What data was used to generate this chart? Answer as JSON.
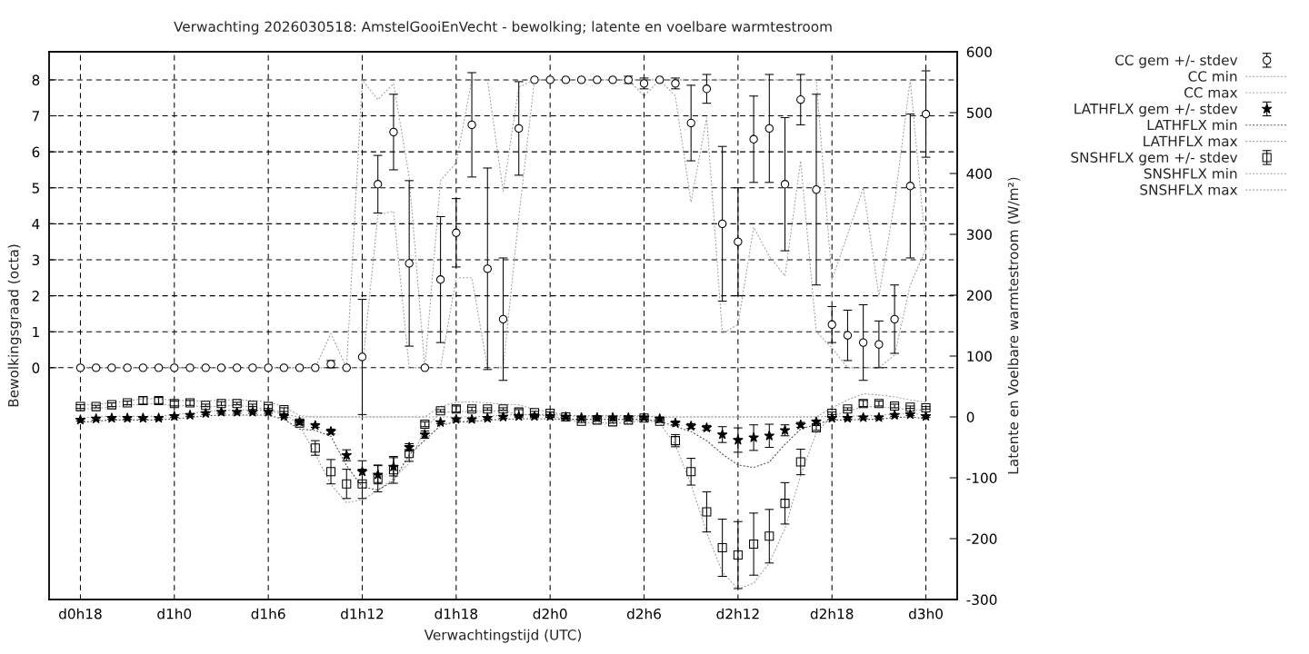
{
  "chart_data": {
    "type": "scatter",
    "title": "Verwachting 2026030518: AmstelGooiEnVecht - bewolking; latente en voelbare warmtestroom",
    "xlabel": "Verwachtingstijd (UTC)",
    "ylabel": "Bewolkingsgraad (octa)",
    "y2label": "Latente en Voelbare warmtestroom (W/m²)",
    "categories": [
      "d0h18",
      null,
      null,
      null,
      null,
      null,
      "d1h0",
      null,
      null,
      null,
      null,
      null,
      "d1h6",
      null,
      null,
      null,
      null,
      null,
      "d1h12",
      null,
      null,
      null,
      null,
      null,
      "d1h18",
      null,
      null,
      null,
      null,
      null,
      "d2h0",
      null,
      null,
      null,
      null,
      null,
      "d2h6",
      null,
      null,
      null,
      null,
      null,
      "d2h12",
      null,
      null,
      null,
      null,
      null,
      "d2h18",
      null,
      null,
      null,
      null,
      null,
      "d3h0"
    ],
    "ylim": [
      -6.44,
      8.78
    ],
    "yticks": [
      0,
      1,
      2,
      3,
      4,
      5,
      6,
      7,
      8
    ],
    "y2lim": [
      -300,
      600
    ],
    "y2ticks": [
      -300,
      -200,
      -100,
      0,
      100,
      200,
      300,
      400,
      500,
      600
    ],
    "grid": true,
    "legend": "top right",
    "series": [
      {
        "name": "CC gem +/- stdev",
        "marker": "circle",
        "color": "#000000",
        "values": [
          0,
          0,
          0,
          0,
          0,
          0,
          0,
          0,
          0,
          0,
          0,
          0,
          0,
          0,
          0,
          0,
          0.1,
          0,
          0.3,
          5.1,
          6.55,
          2.9,
          0,
          2.45,
          3.75,
          6.75,
          2.75,
          1.35,
          6.65,
          8,
          8,
          8,
          8,
          8,
          8,
          8,
          7.9,
          8,
          7.9,
          6.8,
          7.75,
          4.0,
          3.5,
          6.35,
          6.65,
          5.1,
          7.45,
          4.95,
          1.2,
          0.9,
          0.7,
          0.65,
          1.35,
          5.05,
          7.05
        ],
        "errors": [
          null,
          null,
          null,
          null,
          null,
          null,
          null,
          null,
          null,
          null,
          null,
          null,
          null,
          null,
          null,
          null,
          0.1,
          null,
          1.6,
          0.8,
          1.05,
          2.3,
          null,
          1.75,
          0.95,
          1.45,
          2.8,
          1.7,
          1.3,
          null,
          null,
          null,
          null,
          null,
          null,
          0.1,
          0.15,
          null,
          0.15,
          1.05,
          0.4,
          2.15,
          1.5,
          1.2,
          1.5,
          1.85,
          0.7,
          2.65,
          0.5,
          0.7,
          1.05,
          0.65,
          0.95,
          2.0,
          1.2
        ]
      },
      {
        "name": "CC min",
        "type": "line",
        "line_style": "dotted",
        "color": "#a0a0a0",
        "values": [
          0,
          0,
          0,
          0,
          0,
          0,
          0,
          0,
          0,
          0,
          0,
          0,
          0,
          0,
          0,
          0,
          0,
          0,
          0,
          4.25,
          4.35,
          0,
          0,
          0,
          2.5,
          2.5,
          0,
          0,
          4.2,
          8,
          8,
          8,
          8,
          8,
          8,
          8,
          7.55,
          8,
          7.55,
          4.6,
          6.95,
          0.95,
          1.2,
          3.9,
          3.1,
          2.55,
          5.75,
          1.0,
          0.55,
          0,
          0,
          0,
          0.35,
          2.3,
          3.3
        ]
      },
      {
        "name": "CC max",
        "type": "line",
        "line_style": "dotted",
        "color": "#a0a0a0",
        "values": [
          0,
          0,
          0,
          0,
          0,
          0,
          0,
          0,
          0,
          0,
          0,
          0,
          0,
          0,
          0,
          0,
          0.95,
          0,
          8,
          7.45,
          7.9,
          5.3,
          0,
          5.2,
          5.7,
          8,
          8,
          4.9,
          7.8,
          8,
          8,
          8,
          8,
          8,
          8,
          8,
          8,
          8,
          8,
          8,
          8,
          8,
          8,
          8,
          8,
          8,
          8,
          8,
          2.45,
          3.7,
          5.0,
          2.0,
          4.6,
          8,
          3.3
        ]
      },
      {
        "name": "LATHFLX gem +/- stdev",
        "axis": "y2",
        "marker": "star",
        "color": "#000000",
        "values": [
          -5,
          -3,
          -2,
          -2,
          -2,
          -2,
          1,
          3,
          6,
          8,
          8,
          8,
          8,
          1,
          -8,
          -14,
          -24,
          -63,
          -90,
          -95,
          -82,
          -50,
          -29,
          -9,
          -4,
          -4,
          -2,
          0,
          1,
          1,
          1,
          0,
          -1,
          -1,
          -1,
          -1,
          -1,
          -3,
          -10,
          -15,
          -18,
          -29,
          -38,
          -34,
          -31,
          -22,
          -13,
          -8,
          -2,
          -2,
          -1,
          -1,
          3,
          4,
          1
        ],
        "errors": [
          2,
          2,
          2,
          2,
          2,
          2,
          2,
          2,
          2,
          2,
          2,
          2,
          2,
          2,
          2,
          3,
          4,
          9,
          18,
          15,
          15,
          6,
          6,
          2,
          2,
          2,
          2,
          2,
          2,
          2,
          2,
          2,
          2,
          2,
          2,
          2,
          2,
          2,
          3,
          4,
          4,
          13,
          20,
          21,
          19,
          9,
          4,
          3,
          2,
          2,
          2,
          2,
          2,
          2,
          2
        ]
      },
      {
        "name": "LATHFLX min",
        "type": "line",
        "axis": "y2",
        "line_style": "dotted",
        "color": "#505050",
        "values": [
          -9,
          -7,
          -5,
          -5,
          -5,
          -5,
          -3,
          -1,
          2,
          3,
          3,
          3,
          3,
          -4,
          -20,
          -22,
          -32,
          -80,
          -115,
          -120,
          -105,
          -62,
          -38,
          -14,
          -8,
          -8,
          -5,
          -4,
          -3,
          -3,
          -3,
          -4,
          -4,
          -4,
          -4,
          -4,
          -4,
          -7,
          -16,
          -24,
          -39,
          -61,
          -79,
          -83,
          -74,
          -45,
          -20,
          -12,
          -5,
          -5,
          -4,
          -4,
          -1,
          0,
          -3
        ]
      },
      {
        "name": "LATHFLX max",
        "type": "line",
        "axis": "y2",
        "line_style": "dotted",
        "color": "#a0a0a0",
        "values": [
          -2,
          0,
          1,
          1,
          1,
          1,
          4,
          6,
          9,
          11,
          11,
          11,
          11,
          4,
          0,
          0,
          0,
          0,
          0,
          0,
          0,
          0,
          0,
          0,
          0,
          0,
          1,
          3,
          4,
          4,
          4,
          2,
          2,
          2,
          2,
          2,
          2,
          0,
          0,
          0,
          0,
          0,
          0,
          0,
          0,
          0,
          0,
          0,
          1,
          1,
          2,
          2,
          5,
          6,
          3
        ]
      },
      {
        "name": "SNSHFLX gem +/- stdev",
        "axis": "y2",
        "marker": "square",
        "color": "#000000",
        "values": [
          17,
          17,
          20,
          23,
          27,
          27,
          22,
          23,
          19,
          22,
          22,
          19,
          17,
          12,
          -10,
          -51,
          -90,
          -110,
          -110,
          -101,
          -87,
          -60,
          -12,
          10,
          13,
          13,
          13,
          13,
          8,
          7,
          6,
          0,
          -7,
          -5,
          -8,
          -5,
          -2,
          -7,
          -39,
          -90,
          -156,
          -215,
          -227,
          -209,
          -196,
          -142,
          -74,
          -18,
          6,
          13,
          22,
          22,
          18,
          16,
          15
        ],
        "errors": [
          3,
          2,
          3,
          3,
          6,
          5,
          4,
          4,
          2,
          3,
          2,
          2,
          3,
          3,
          3,
          12,
          20,
          24,
          24,
          22,
          22,
          13,
          4,
          2,
          5,
          3,
          2,
          2,
          4,
          2,
          2,
          2,
          2,
          2,
          2,
          2,
          2,
          2,
          10,
          22,
          33,
          47,
          55,
          51,
          44,
          34,
          21,
          4,
          2,
          2,
          5,
          4,
          3,
          2,
          2
        ]
      },
      {
        "name": "SNSHFLX min",
        "type": "line",
        "axis": "y2",
        "line_style": "dotted",
        "color": "#a0a0a0",
        "values": [
          13,
          14,
          16,
          19,
          21,
          22,
          18,
          19,
          16,
          18,
          19,
          16,
          13,
          7,
          -14,
          -61,
          -111,
          -141,
          -136,
          -121,
          -101,
          -76,
          -19,
          7,
          9,
          9,
          9,
          10,
          4,
          3,
          2,
          -3,
          -10,
          -9,
          -11,
          -9,
          -5,
          -10,
          -46,
          -111,
          -190,
          -255,
          -283,
          -273,
          -240,
          -183,
          -96,
          -26,
          2,
          9,
          17,
          17,
          14,
          12,
          11
        ]
      },
      {
        "name": "SNSHFLX max",
        "type": "line",
        "axis": "y2",
        "line_style": "dotted",
        "color": "#a0a0a0",
        "values": [
          20,
          21,
          23,
          26,
          30,
          30,
          27,
          27,
          26,
          28,
          28,
          27,
          25,
          17,
          2,
          0,
          0,
          0,
          0,
          0,
          0,
          0,
          0,
          17,
          24,
          25,
          23,
          21,
          20,
          12,
          8,
          3,
          0,
          0,
          0,
          0,
          0,
          0,
          0,
          0,
          0,
          0,
          0,
          0,
          0,
          0,
          0,
          0,
          15,
          28,
          38,
          36,
          33,
          28,
          24
        ]
      }
    ]
  }
}
